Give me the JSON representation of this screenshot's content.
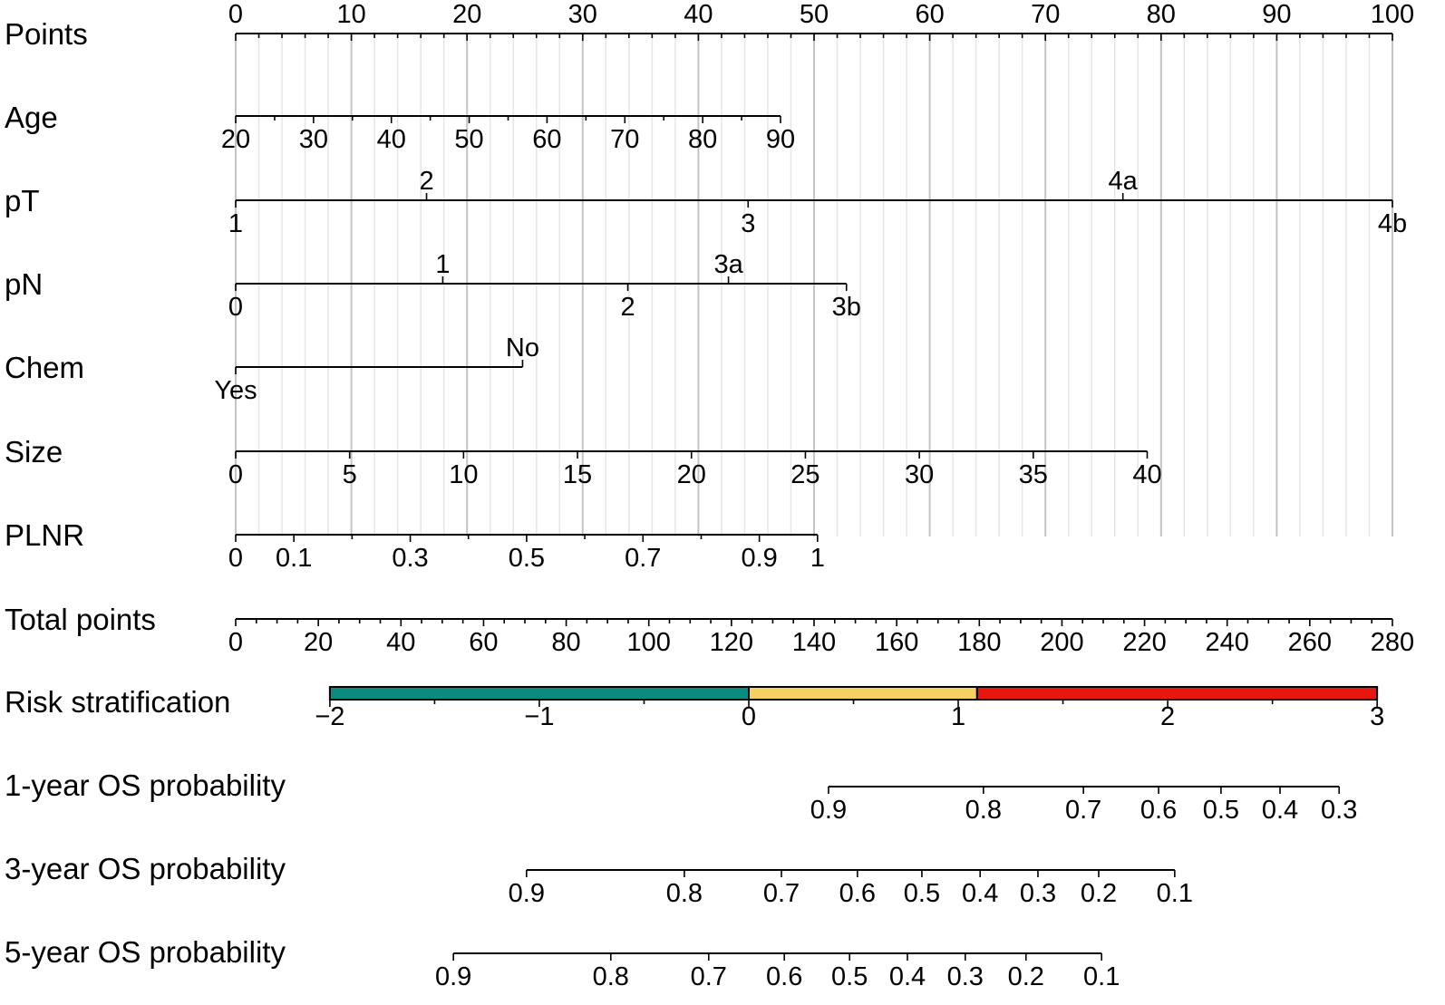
{
  "chart_data": {
    "type": "nomogram",
    "grid": true,
    "colors": {
      "axis": "#000000",
      "grid_major": "#c4c4c4",
      "grid_minor": "#e6e6e6",
      "background": "#ffffff"
    },
    "points": {
      "label": "Points",
      "min": 0,
      "max": 100,
      "major_step": 10,
      "minor_step": 2,
      "tick_labels": [
        "0",
        "10",
        "20",
        "30",
        "40",
        "50",
        "60",
        "70",
        "80",
        "90",
        "100"
      ]
    },
    "predictors": [
      {
        "label": "Age",
        "min": 20,
        "max": 90,
        "points_at_min": 0,
        "points_at_max": 47.1,
        "ticks": [
          {
            "value": 20,
            "text": "20"
          },
          {
            "value": 25
          },
          {
            "value": 30,
            "text": "30"
          },
          {
            "value": 35
          },
          {
            "value": 40,
            "text": "40"
          },
          {
            "value": 45
          },
          {
            "value": 50,
            "text": "50"
          },
          {
            "value": 55
          },
          {
            "value": 60,
            "text": "60"
          },
          {
            "value": 65
          },
          {
            "value": 70,
            "text": "70"
          },
          {
            "value": 75
          },
          {
            "value": 80,
            "text": "80"
          },
          {
            "value": 85
          },
          {
            "value": 90,
            "text": "90"
          }
        ]
      },
      {
        "label": "pT",
        "levels": [
          {
            "text": "1",
            "points": 0
          },
          {
            "text": "2",
            "points": 16.5
          },
          {
            "text": "3",
            "points": 44.3
          },
          {
            "text": "4a",
            "points": 76.7
          },
          {
            "text": "4b",
            "points": 100
          }
        ]
      },
      {
        "label": "pN",
        "levels": [
          {
            "text": "0",
            "points": 0
          },
          {
            "text": "1",
            "points": 17.9
          },
          {
            "text": "2",
            "points": 33.9
          },
          {
            "text": "3a",
            "points": 42.6
          },
          {
            "text": "3b",
            "points": 52.8
          }
        ]
      },
      {
        "label": "Chem",
        "levels": [
          {
            "text": "Yes",
            "points": 0
          },
          {
            "text": "No",
            "points": 24.8
          }
        ]
      },
      {
        "label": "Size",
        "min": 0,
        "max": 40,
        "points_at_min": 0,
        "points_at_max": 78.8,
        "ticks": [
          {
            "value": 0,
            "text": "0"
          },
          {
            "value": 5,
            "text": "5"
          },
          {
            "value": 10,
            "text": "10"
          },
          {
            "value": 15,
            "text": "15"
          },
          {
            "value": 20,
            "text": "20"
          },
          {
            "value": 25,
            "text": "25"
          },
          {
            "value": 30,
            "text": "30"
          },
          {
            "value": 35,
            "text": "35"
          },
          {
            "value": 40,
            "text": "40"
          }
        ]
      },
      {
        "label": "PLNR",
        "min": 0,
        "max": 1,
        "points_at_min": 0,
        "points_at_max": 50.3,
        "ticks": [
          {
            "value": 0,
            "text": "0"
          },
          {
            "value": 0.1,
            "text": "0.1"
          },
          {
            "value": 0.2
          },
          {
            "value": 0.3,
            "text": "0.3"
          },
          {
            "value": 0.4
          },
          {
            "value": 0.5,
            "text": "0.5"
          },
          {
            "value": 0.6
          },
          {
            "value": 0.7,
            "text": "0.7"
          },
          {
            "value": 0.8
          },
          {
            "value": 0.9,
            "text": "0.9"
          },
          {
            "value": 1,
            "text": "1"
          }
        ]
      }
    ],
    "total_points": {
      "label": "Total points",
      "min": 0,
      "max": 280,
      "major_step": 20,
      "minor_step": 5,
      "tick_labels": [
        "0",
        "20",
        "40",
        "60",
        "80",
        "100",
        "120",
        "140",
        "160",
        "180",
        "200",
        "220",
        "240",
        "260",
        "280"
      ]
    },
    "risk": {
      "label": "Risk stratification",
      "min": -2,
      "max": 3,
      "total_points_at_min": 22.8,
      "total_points_at_max": 276.3,
      "major_step": 1,
      "minor_step": 0.5,
      "tick_labels": [
        "−2",
        "−1",
        "0",
        "1",
        "2",
        "3"
      ],
      "segments": [
        {
          "from": -2,
          "to": 0,
          "color": "#0b8b80"
        },
        {
          "from": 0,
          "to": 1.09,
          "color": "#f7d063"
        },
        {
          "from": 1.09,
          "to": 3,
          "color": "#e8160f"
        }
      ]
    },
    "survival": [
      {
        "label": "1-year OS probability",
        "ticks": [
          {
            "text": "0.9",
            "total_points": 143.5
          },
          {
            "text": "0.8",
            "total_points": 181.0
          },
          {
            "text": "0.7",
            "total_points": 205.2
          },
          {
            "text": "0.6",
            "total_points": 223.4
          },
          {
            "text": "0.5",
            "total_points": 238.5
          },
          {
            "text": "0.4",
            "total_points": 252.8
          },
          {
            "text": "0.3",
            "total_points": 267.1
          }
        ]
      },
      {
        "label": "3-year OS probability",
        "ticks": [
          {
            "text": "0.9",
            "total_points": 70.4
          },
          {
            "text": "0.8",
            "total_points": 108.6
          },
          {
            "text": "0.7",
            "total_points": 132.1
          },
          {
            "text": "0.6",
            "total_points": 150.5
          },
          {
            "text": "0.5",
            "total_points": 166.1
          },
          {
            "text": "0.4",
            "total_points": 180.2
          },
          {
            "text": "0.3",
            "total_points": 194.2
          },
          {
            "text": "0.2",
            "total_points": 208.9
          },
          {
            "text": "0.1",
            "total_points": 227.3
          }
        ]
      },
      {
        "label": "5-year OS probability",
        "ticks": [
          {
            "text": "0.9",
            "total_points": 52.7
          },
          {
            "text": "0.8",
            "total_points": 90.8
          },
          {
            "text": "0.7",
            "total_points": 114.5
          },
          {
            "text": "0.6",
            "total_points": 132.8
          },
          {
            "text": "0.5",
            "total_points": 148.6
          },
          {
            "text": "0.4",
            "total_points": 162.6
          },
          {
            "text": "0.3",
            "total_points": 176.6
          },
          {
            "text": "0.2",
            "total_points": 191.3
          },
          {
            "text": "0.1",
            "total_points": 209.6
          }
        ]
      }
    ]
  }
}
